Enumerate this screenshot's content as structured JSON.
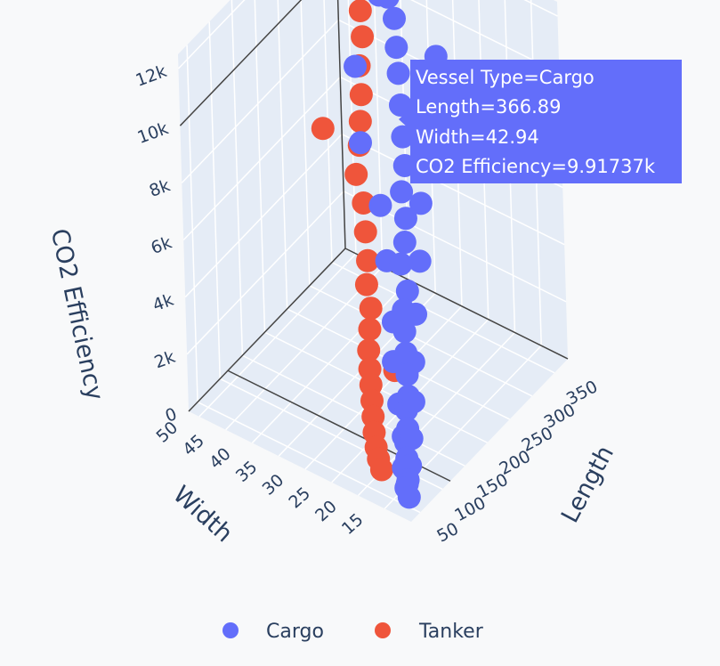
{
  "chart_data": {
    "type": "scatter3d",
    "xlabel": "Length",
    "ylabel": "Width",
    "zlabel": "CO2 Efficiency",
    "xlim": [
      30,
      380
    ],
    "ylim": [
      10,
      52
    ],
    "zlim": [
      0,
      12500
    ],
    "x_ticks": [
      "50",
      "100",
      "150",
      "200",
      "250",
      "300",
      "350"
    ],
    "y_ticks": [
      "15",
      "20",
      "25",
      "30",
      "35",
      "40",
      "45",
      "50"
    ],
    "z_ticks": [
      "0",
      "2k",
      "4k",
      "6k",
      "8k",
      "10k",
      "12k"
    ],
    "legend_placement": "bottom",
    "grid": true,
    "series": [
      {
        "name": "Cargo",
        "color": "#636efa",
        "points": [
          [
            366.89,
            42.94,
            9917.37
          ],
          [
            370,
            45,
            12000
          ],
          [
            345,
            40,
            11200
          ],
          [
            330,
            38,
            10900
          ],
          [
            320,
            36,
            10500
          ],
          [
            300,
            34,
            10000
          ],
          [
            280,
            32,
            9600
          ],
          [
            260,
            30,
            9000
          ],
          [
            240,
            28,
            8400
          ],
          [
            220,
            26,
            7900
          ],
          [
            200,
            25,
            7400
          ],
          [
            185,
            23,
            6900
          ],
          [
            170,
            22,
            6400
          ],
          [
            160,
            22,
            5800
          ],
          [
            150,
            20,
            5200
          ],
          [
            140,
            20,
            4700
          ],
          [
            130,
            19,
            4200
          ],
          [
            120,
            18,
            3700
          ],
          [
            110,
            17,
            3200
          ],
          [
            100,
            16,
            2700
          ],
          [
            95,
            16,
            2300
          ],
          [
            85,
            15,
            1900
          ],
          [
            80,
            15,
            1500
          ],
          [
            70,
            14,
            1200
          ],
          [
            65,
            14,
            900
          ],
          [
            60,
            13,
            700
          ],
          [
            55,
            13,
            500
          ],
          [
            50,
            12,
            350
          ],
          [
            350,
            48,
            10200
          ],
          [
            300,
            42,
            8600
          ],
          [
            250,
            37,
            7200
          ],
          [
            210,
            30,
            6300
          ],
          [
            175,
            26,
            5300
          ],
          [
            140,
            22,
            4100
          ],
          [
            115,
            20,
            3300
          ],
          [
            90,
            17,
            2500
          ],
          [
            75,
            15,
            1800
          ],
          [
            62,
            14,
            1000
          ],
          [
            58,
            13,
            600
          ],
          [
            340,
            30,
            9400
          ],
          [
            290,
            28,
            8100
          ],
          [
            230,
            24,
            6600
          ],
          [
            190,
            21,
            5500
          ],
          [
            155,
            19,
            4400
          ],
          [
            125,
            17,
            3400
          ],
          [
            100,
            15,
            2600
          ],
          [
            82,
            14,
            1700
          ],
          [
            66,
            13,
            1100
          ]
        ]
      },
      {
        "name": "Tanker",
        "color": "#ef553b",
        "points": [
          [
            360,
            46,
            9200
          ],
          [
            340,
            44,
            8800
          ],
          [
            320,
            43,
            8200
          ],
          [
            300,
            41,
            7700
          ],
          [
            285,
            40,
            7100
          ],
          [
            270,
            39,
            6600
          ],
          [
            250,
            38,
            6000
          ],
          [
            260,
            45,
            6800
          ],
          [
            230,
            35,
            5600
          ],
          [
            210,
            33,
            5100
          ],
          [
            190,
            31,
            4600
          ],
          [
            175,
            30,
            4100
          ],
          [
            160,
            28,
            3700
          ],
          [
            145,
            27,
            3300
          ],
          [
            130,
            26,
            2900
          ],
          [
            120,
            25,
            2500
          ],
          [
            110,
            24,
            2200
          ],
          [
            100,
            23,
            1900
          ],
          [
            90,
            22,
            1600
          ],
          [
            80,
            21,
            1300
          ],
          [
            72,
            20,
            1000
          ],
          [
            65,
            19,
            800
          ],
          [
            60,
            18,
            600
          ],
          [
            140,
            22,
            2400
          ]
        ]
      }
    ]
  },
  "tooltip": {
    "lines": [
      "Vessel Type=Cargo",
      "Length=366.89",
      "Width=42.94",
      "CO2 Efficiency=9.91737k"
    ],
    "color": "#636efa"
  }
}
